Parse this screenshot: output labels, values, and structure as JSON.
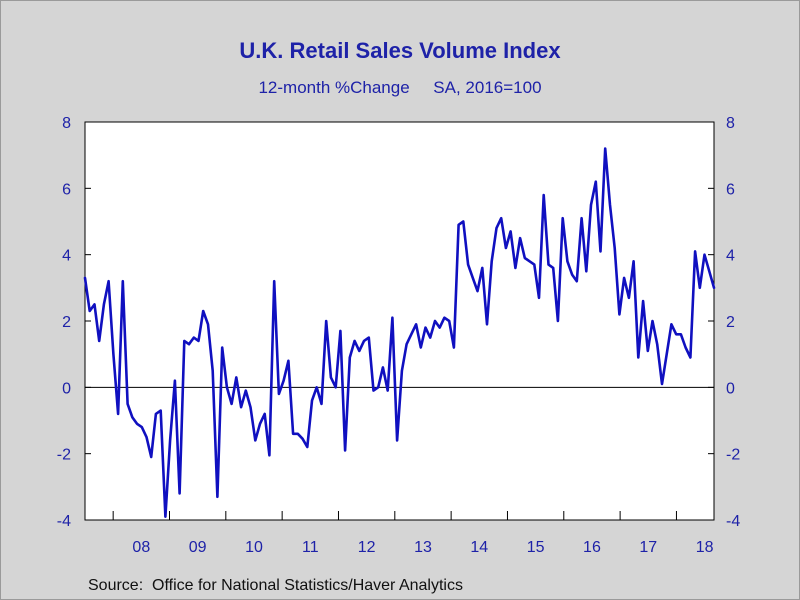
{
  "colors": {
    "background": "#d5d5d5",
    "plot_background": "#ffffff",
    "line": "#1010c0",
    "text": "#1e22a8"
  },
  "chart_data": {
    "type": "line",
    "title": "U.K. Retail Sales Volume Index",
    "subtitle": "12-month %Change     SA, 2016=100",
    "source": "Source:  Office for National Statistics/Haver Analytics",
    "ylim": [
      -4,
      8
    ],
    "yticks": [
      "8",
      "6",
      "4",
      "2",
      "0",
      "-2",
      "-4"
    ],
    "yticks_values": [
      8,
      6,
      4,
      2,
      0,
      -2,
      -4
    ],
    "right_axis": true,
    "zero_line": true,
    "grid": false,
    "xticks": [
      "08",
      "09",
      "10",
      "11",
      "12",
      "13",
      "14",
      "15",
      "16",
      "17",
      "18"
    ],
    "x_start": "2007-07",
    "x_end": "2018-09",
    "series": [
      {
        "values": [
          3.3,
          2.3,
          2.5,
          1.4,
          2.5,
          3.2,
          1.0,
          -0.8,
          3.2,
          -0.5,
          -0.9,
          -1.1,
          -1.2,
          -1.5,
          -2.1,
          -0.8,
          -0.7,
          -3.9,
          -1.6,
          0.2,
          -3.2,
          1.4,
          1.3,
          1.5,
          1.4,
          2.3,
          1.9,
          0.5,
          -3.3,
          1.2,
          0.0,
          -0.5,
          0.3,
          -0.6,
          -0.1,
          -0.6,
          -1.6,
          -1.1,
          -0.8,
          -2.05,
          3.2,
          -0.2,
          0.2,
          0.8,
          -1.4,
          -1.4,
          -1.55,
          -1.8,
          -0.4,
          0.0,
          -0.5,
          2.0,
          0.3,
          0.0,
          1.7,
          -1.9,
          0.9,
          1.4,
          1.1,
          1.4,
          1.5,
          -0.1,
          0.0,
          0.6,
          -0.1,
          2.1,
          -1.6,
          0.5,
          1.3,
          1.6,
          1.9,
          1.2,
          1.8,
          1.5,
          2.0,
          1.8,
          2.1,
          2.0,
          1.2,
          4.9,
          5.0,
          3.7,
          3.3,
          2.9,
          3.6,
          1.9,
          3.8,
          4.8,
          5.1,
          4.2,
          4.7,
          3.6,
          4.5,
          3.9,
          3.8,
          3.7,
          2.7,
          5.8,
          3.7,
          3.6,
          2.0,
          5.1,
          3.8,
          3.4,
          3.2,
          5.1,
          3.5,
          5.5,
          6.2,
          4.1,
          7.2,
          5.5,
          4.2,
          2.2,
          3.3,
          2.7,
          3.8,
          0.9,
          2.6,
          1.1,
          2.0,
          1.3,
          0.1,
          1.0,
          1.9,
          1.6,
          1.6,
          1.2,
          0.9,
          4.1,
          3.0,
          4.0,
          3.5,
          3.0
        ]
      }
    ]
  }
}
